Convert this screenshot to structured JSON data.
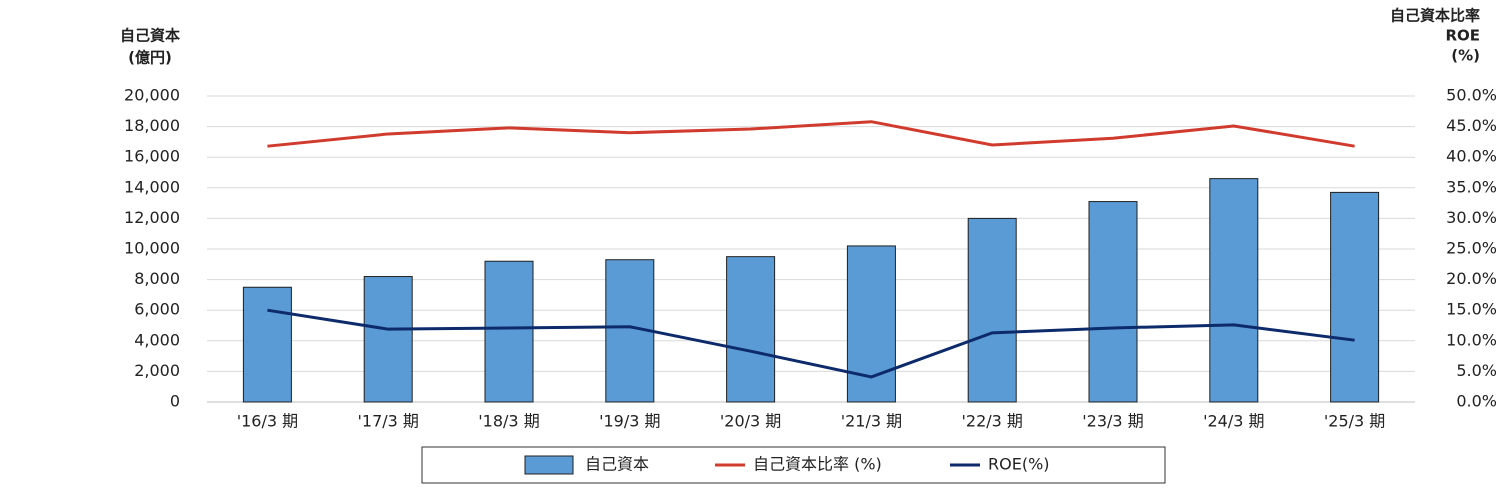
{
  "chart_data": {
    "type": "bar_line",
    "y_title": [
      "自己資本",
      "(億円)"
    ],
    "y2_title": [
      "自己資本比率",
      "ROE",
      "(%)"
    ],
    "categories": [
      "'16/3 期",
      "'17/3 期",
      "'18/3 期",
      "'19/3 期",
      "'20/3 期",
      "'21/3 期",
      "'22/3 期",
      "'23/3 期",
      "'24/3 期",
      "'25/3 期"
    ],
    "series": [
      {
        "name": "自己資本",
        "type": "bar",
        "color": "#5b9bd5",
        "values": [
          7500,
          8200,
          9200,
          9300,
          9500,
          10200,
          12000,
          13100,
          14600,
          13700
        ]
      },
      {
        "name": "自己資本比率 (%)",
        "type": "line",
        "axis": "y2",
        "color": "#d13b2e",
        "values": [
          41.8,
          43.8,
          44.8,
          44.0,
          44.6,
          45.8,
          42.0,
          43.1,
          45.1,
          41.8
        ]
      },
      {
        "name": "ROE(%)",
        "type": "line",
        "axis": "y2",
        "color": "#0d2a6b",
        "values": [
          15.0,
          11.9,
          12.1,
          12.3,
          8.3,
          4.1,
          11.3,
          12.1,
          12.6,
          10.1
        ]
      }
    ],
    "ylim": [
      0,
      20000
    ],
    "yticks": [
      0,
      {
        "value": 2000,
        "label": "2,000"
      },
      {
        "value": 4000,
        "label": "4,000"
      },
      {
        "value": 6000,
        "label": "6,000"
      },
      {
        "value": 8000,
        "label": "8,000"
      },
      {
        "value": 10000,
        "label": "10,000"
      },
      {
        "value": 12000,
        "label": "12,000"
      },
      {
        "value": 14000,
        "label": "14,000"
      },
      {
        "value": 16000,
        "label": "16,000"
      },
      {
        "value": 18000,
        "label": "18,000"
      },
      {
        "value": 20000,
        "label": "20,000"
      }
    ],
    "y2lim": [
      0,
      50
    ],
    "y2ticks": [
      {
        "value": 0,
        "label": "0.0%"
      },
      {
        "value": 5,
        "label": "5.0%"
      },
      {
        "value": 10,
        "label": "10.0%"
      },
      {
        "value": 15,
        "label": "15.0%"
      },
      {
        "value": 20,
        "label": "20.0%"
      },
      {
        "value": 25,
        "label": "25.0%"
      },
      {
        "value": 30,
        "label": "30.0%"
      },
      {
        "value": 35,
        "label": "35.0%"
      },
      {
        "value": 40,
        "label": "40.0%"
      },
      {
        "value": 45,
        "label": "45.0%"
      },
      {
        "value": 50,
        "label": "50.0%"
      }
    ],
    "grid": true,
    "legend": "bottom"
  }
}
